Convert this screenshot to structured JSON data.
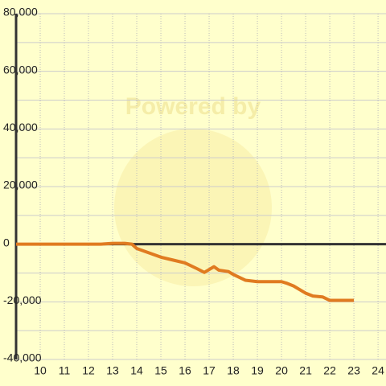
{
  "chart_data": {
    "type": "line",
    "annotation": "Powered by",
    "x": [
      9,
      10,
      11,
      12,
      12.5,
      13,
      13.5,
      13.8,
      14,
      14.5,
      15,
      15.5,
      16,
      16.5,
      16.8,
      17,
      17.2,
      17.4,
      17.8,
      18,
      18.5,
      19,
      19.5,
      20,
      20.2,
      20.5,
      21,
      21.3,
      21.7,
      22,
      22.5,
      23
    ],
    "series": [
      {
        "color": "#e07b20",
        "values": [
          0,
          0,
          0,
          0,
          0,
          300,
          300,
          0,
          -1500,
          -3000,
          -4500,
          -5500,
          -6500,
          -8500,
          -9800,
          -8800,
          -7800,
          -9000,
          -9500,
          -10500,
          -12500,
          -13000,
          -13000,
          -13000,
          -13500,
          -14500,
          -17000,
          -18000,
          -18300,
          -19500,
          -19500,
          -19500
        ]
      }
    ],
    "xlim": [
      9,
      24.33
    ],
    "xticks": [
      10,
      11,
      12,
      13,
      14,
      15,
      16,
      17,
      18,
      19,
      20,
      21,
      22,
      23,
      24
    ],
    "ylim": [
      -40000,
      80000
    ],
    "yticks": [
      {
        "value": -40000,
        "label": "-40,000"
      },
      {
        "value": -20000,
        "label": "-20,000"
      },
      0,
      {
        "value": 20000,
        "label": "20,000"
      },
      {
        "value": 40000,
        "label": "40,000"
      },
      {
        "value": 60000,
        "label": "60,000"
      },
      {
        "value": 80000,
        "label": "80,000"
      }
    ],
    "yminor": [
      -30000,
      -10000,
      10000,
      30000,
      50000,
      70000
    ],
    "grid": true
  }
}
